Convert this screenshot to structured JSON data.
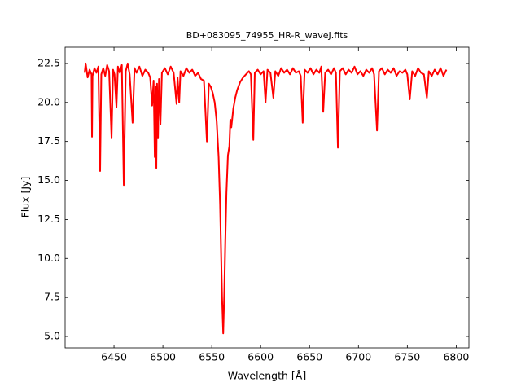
{
  "chart_data": {
    "type": "line",
    "title": "BD+083095_74955_HR-R_waveJ.fits",
    "x_label": "Wavelength [Å]",
    "y_label": "Flux [Jy]",
    "x": [
      6420,
      6421,
      6423,
      6425,
      6427,
      6427.5,
      6428,
      6430,
      6432,
      6434,
      6435.8,
      6437,
      6439,
      6441,
      6443,
      6445,
      6447.5,
      6449,
      6450.5,
      6452.5,
      6454,
      6456,
      6458,
      6460,
      6462,
      6464,
      6466,
      6469,
      6471,
      6473,
      6476,
      6479,
      6482,
      6485,
      6487,
      6489,
      6490.5,
      6491.7,
      6492.5,
      6493.3,
      6494,
      6495,
      6496,
      6497.5,
      6499,
      6502,
      6505,
      6508,
      6511,
      6514,
      6515,
      6516.7,
      6518,
      6521,
      6524,
      6527,
      6530,
      6533,
      6536,
      6539,
      6542,
      6545,
      6547,
      6549,
      6551,
      6553,
      6555,
      6557,
      6558.5,
      6559.5,
      6560.5,
      6561.7,
      6562.8,
      6563.8,
      6565,
      6566.5,
      6568,
      6569,
      6570,
      6572,
      6574,
      6576,
      6579,
      6582,
      6585,
      6588,
      6590,
      6592.5,
      6594,
      6597,
      6600,
      6603,
      6605,
      6607,
      6610,
      6613,
      6615,
      6618,
      6621,
      6624,
      6627,
      6630,
      6633,
      6636,
      6639,
      6641,
      6643,
      6645,
      6648,
      6651,
      6654,
      6657,
      6660,
      6662,
      6664,
      6666,
      6669,
      6672,
      6675,
      6677,
      6679,
      6681,
      6684,
      6687,
      6690,
      6693,
      6696,
      6699,
      6702,
      6705,
      6708,
      6711,
      6714,
      6716,
      6719,
      6721,
      6724,
      6727,
      6730,
      6733,
      6736,
      6739,
      6742,
      6745,
      6748,
      6750,
      6752.5,
      6755,
      6758,
      6761,
      6764,
      6767,
      6770,
      6772,
      6775,
      6778,
      6781,
      6784,
      6787,
      6790
    ],
    "series": [
      {
        "color": "#ff0000",
        "values": [
          21.9,
          22.5,
          21.6,
          22.1,
          21.8,
          17.8,
          21.7,
          22.2,
          21.9,
          22.3,
          15.6,
          21.8,
          22.2,
          21.7,
          22.4,
          22.0,
          17.7,
          22.1,
          21.8,
          19.7,
          22.3,
          21.9,
          22.4,
          14.7,
          22.0,
          22.5,
          21.8,
          18.7,
          22.2,
          21.9,
          22.3,
          21.7,
          22.1,
          21.9,
          21.6,
          19.8,
          21.4,
          16.5,
          21.0,
          15.8,
          21.2,
          17.7,
          21.5,
          18.6,
          21.9,
          22.2,
          21.8,
          22.3,
          21.9,
          19.9,
          21.6,
          20.0,
          22.0,
          21.7,
          22.2,
          21.9,
          22.1,
          21.7,
          21.9,
          21.5,
          21.4,
          17.5,
          21.2,
          21.0,
          20.6,
          20.0,
          18.8,
          16.5,
          13.5,
          10.5,
          7.5,
          5.2,
          7.8,
          11.0,
          14.2,
          16.6,
          17.2,
          18.9,
          18.4,
          19.6,
          20.3,
          20.8,
          21.3,
          21.6,
          21.8,
          22.0,
          21.8,
          17.6,
          21.9,
          22.1,
          21.8,
          22.0,
          20.0,
          22.1,
          21.9,
          20.3,
          22.0,
          21.7,
          22.2,
          21.9,
          22.1,
          21.8,
          22.2,
          21.9,
          22.0,
          21.7,
          18.7,
          22.1,
          21.9,
          22.2,
          21.8,
          22.1,
          21.9,
          22.3,
          19.4,
          21.9,
          22.1,
          21.8,
          22.2,
          21.9,
          17.1,
          22.0,
          22.2,
          21.8,
          22.1,
          21.9,
          22.3,
          21.8,
          22.0,
          21.7,
          22.1,
          21.9,
          22.2,
          21.8,
          18.2,
          22.0,
          22.2,
          21.8,
          22.1,
          21.9,
          22.2,
          21.7,
          22.0,
          21.9,
          22.1,
          21.8,
          20.2,
          22.0,
          21.7,
          22.2,
          21.9,
          21.8,
          20.3,
          22.0,
          21.7,
          22.1,
          21.8,
          22.2,
          21.7,
          22.1
        ]
      }
    ],
    "xlim": [
      6400,
      6813
    ],
    "ylim": [
      4.27,
      23.54
    ],
    "xticks": [
      6450,
      6500,
      6550,
      6600,
      6650,
      6700,
      6750,
      6800
    ],
    "yticks": [
      {
        "value": 5,
        "label": "5.0"
      },
      7.5,
      {
        "value": 10,
        "label": "10.0"
      },
      12.5,
      {
        "value": 15,
        "label": "15.0"
      },
      17.5,
      {
        "value": 20,
        "label": "20.0"
      },
      22.5
    ]
  }
}
